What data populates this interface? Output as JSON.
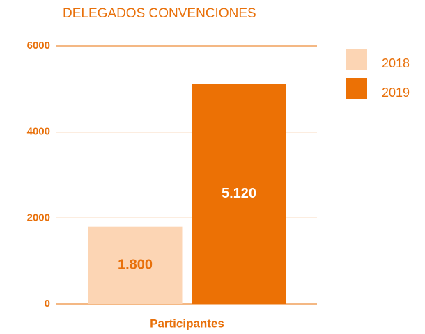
{
  "chart_data": {
    "type": "bar",
    "title": "DELEGADOS CONVENCIONES",
    "categories": [
      "Participantes"
    ],
    "series": [
      {
        "name": "2018",
        "color": "#fcd5b4",
        "values": [
          1800
        ],
        "value_labels": [
          "1.800"
        ]
      },
      {
        "name": "2019",
        "color": "#ec7105",
        "values": [
          5120
        ],
        "value_labels": [
          "5.120"
        ]
      }
    ],
    "ylim": [
      0,
      6000
    ],
    "yticks": [
      0,
      2000,
      4000,
      6000
    ],
    "grid": true,
    "legend": "right"
  }
}
